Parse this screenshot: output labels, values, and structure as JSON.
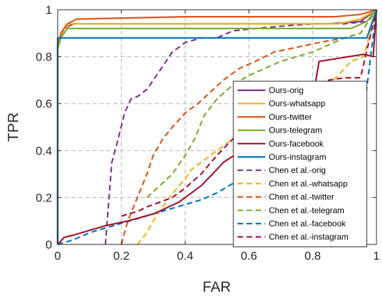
{
  "chart_data": {
    "type": "line",
    "title": "",
    "xlabel": "FAR",
    "ylabel": "TPR",
    "xlim": [
      0,
      1
    ],
    "ylim": [
      0,
      1
    ],
    "xticks": [
      0,
      0.2,
      0.4,
      0.6,
      0.8,
      1
    ],
    "yticks": [
      0,
      0.2,
      0.4,
      0.6,
      0.8,
      1
    ],
    "xtick_labels": [
      "0",
      "0.2",
      "0.4",
      "0.6",
      "0.8",
      "1"
    ],
    "ytick_labels": [
      "0",
      "0.2",
      "0.4",
      "0.6",
      "0.8",
      "1"
    ],
    "grid": true,
    "legend_position": "bottom-right",
    "series": [
      {
        "name": "Ours-orig",
        "color": "#7E2F8E",
        "dash": "solid",
        "x": [
          0,
          0,
          0.02,
          0.05,
          0.85,
          0.95,
          1
        ],
        "y": [
          0,
          0.85,
          0.92,
          0.94,
          0.94,
          0.95,
          1
        ]
      },
      {
        "name": "Ours-whatsapp",
        "color": "#EDB120",
        "dash": "solid",
        "x": [
          0,
          0,
          0.02,
          0.04,
          0.88,
          0.95,
          1
        ],
        "y": [
          0,
          0.86,
          0.92,
          0.94,
          0.94,
          0.96,
          1
        ]
      },
      {
        "name": "Ours-twitter",
        "color": "#D95319",
        "dash": "solid",
        "x": [
          0,
          0,
          0.01,
          0.03,
          0.06,
          0.4,
          0.87,
          0.95,
          1
        ],
        "y": [
          0,
          0.84,
          0.9,
          0.94,
          0.96,
          0.97,
          0.97,
          0.98,
          1
        ]
      },
      {
        "name": "Ours-telegram",
        "color": "#77AC30",
        "dash": "solid",
        "x": [
          0,
          0,
          0.01,
          0.03,
          0.92,
          0.97,
          1
        ],
        "y": [
          0,
          0.83,
          0.88,
          0.92,
          0.92,
          0.95,
          1
        ]
      },
      {
        "name": "Ours-facebook",
        "color": "#A2142F",
        "dash": "solid",
        "x": [
          0,
          0.02,
          0.05,
          0.1,
          0.15,
          0.22,
          0.3,
          0.38,
          0.45,
          0.5,
          0.52,
          0.6,
          0.7,
          0.76,
          0.8,
          0.82,
          0.96,
          0.99,
          1
        ],
        "y": [
          0,
          0.03,
          0.04,
          0.06,
          0.08,
          0.1,
          0.13,
          0.18,
          0.25,
          0.32,
          0.35,
          0.42,
          0.48,
          0.55,
          0.62,
          0.78,
          0.81,
          0.8,
          1
        ]
      },
      {
        "name": "Ours-instagram",
        "color": "#0072BD",
        "dash": "solid",
        "x": [
          0,
          0,
          0.03,
          0.97,
          1
        ],
        "y": [
          0,
          0.88,
          0.88,
          0.88,
          1
        ]
      },
      {
        "name": "Chen et al.-orig",
        "color": "#7E2F8E",
        "dash": "dashed",
        "x": [
          0.15,
          0.17,
          0.19,
          0.21,
          0.23,
          0.25,
          0.28,
          0.3,
          0.33,
          0.36,
          0.38,
          0.4,
          0.45,
          0.5,
          0.55,
          0.62,
          0.7,
          0.8,
          0.9,
          0.97,
          1
        ],
        "y": [
          0,
          0.35,
          0.45,
          0.56,
          0.62,
          0.63,
          0.66,
          0.7,
          0.76,
          0.82,
          0.84,
          0.86,
          0.88,
          0.88,
          0.91,
          0.92,
          0.93,
          0.94,
          0.94,
          0.95,
          1
        ]
      },
      {
        "name": "Chen et al.-whatsapp",
        "color": "#EDB120",
        "dash": "dashed",
        "x": [
          0.25,
          0.28,
          0.3,
          0.35,
          0.4,
          0.42,
          0.45,
          0.5,
          0.55,
          0.6,
          0.65,
          0.7,
          0.75,
          0.8,
          0.85,
          0.88,
          0.92,
          0.96,
          1
        ],
        "y": [
          0,
          0.05,
          0.1,
          0.2,
          0.28,
          0.32,
          0.35,
          0.4,
          0.45,
          0.5,
          0.52,
          0.56,
          0.6,
          0.65,
          0.68,
          0.72,
          0.78,
          0.8,
          1
        ]
      },
      {
        "name": "Chen et al.-twitter",
        "color": "#D95319",
        "dash": "dashed",
        "x": [
          0.2,
          0.22,
          0.25,
          0.28,
          0.3,
          0.33,
          0.36,
          0.4,
          0.44,
          0.48,
          0.52,
          0.57,
          0.62,
          0.68,
          0.75,
          0.82,
          0.9,
          0.95,
          1
        ],
        "y": [
          0,
          0.1,
          0.2,
          0.3,
          0.38,
          0.45,
          0.5,
          0.56,
          0.6,
          0.65,
          0.7,
          0.75,
          0.78,
          0.82,
          0.84,
          0.86,
          0.88,
          0.9,
          1
        ]
      },
      {
        "name": "Chen et al.-telegram",
        "color": "#77AC30",
        "dash": "dashed",
        "x": [
          0.28,
          0.32,
          0.36,
          0.4,
          0.43,
          0.46,
          0.5,
          0.55,
          0.6,
          0.65,
          0.7,
          0.75,
          0.8,
          0.85,
          0.9,
          0.95,
          1
        ],
        "y": [
          0.2,
          0.25,
          0.3,
          0.38,
          0.45,
          0.55,
          0.62,
          0.68,
          0.72,
          0.75,
          0.78,
          0.8,
          0.82,
          0.85,
          0.88,
          0.9,
          1
        ]
      },
      {
        "name": "Chen et al.-facebook",
        "color": "#0072BD",
        "dash": "dashed",
        "x": [
          0,
          0.05,
          0.1,
          0.15,
          0.2,
          0.25,
          0.3,
          0.35,
          0.4,
          0.45,
          0.5,
          0.55,
          0.6,
          0.65,
          0.7,
          0.72,
          0.8,
          0.9,
          0.95,
          1
        ],
        "y": [
          0,
          0.02,
          0.05,
          0.07,
          0.09,
          0.11,
          0.13,
          0.15,
          0.17,
          0.19,
          0.22,
          0.26,
          0.29,
          0.32,
          0.34,
          0.37,
          0.4,
          0.42,
          0.45,
          1
        ]
      },
      {
        "name": "Chen et al.-instagram",
        "color": "#A2142F",
        "dash": "dashed",
        "x": [
          0.2,
          0.22,
          0.25,
          0.28,
          0.32,
          0.36,
          0.4,
          0.45,
          0.5,
          0.55,
          0.6,
          0.65,
          0.7,
          0.75,
          0.8,
          0.85,
          0.9,
          0.95,
          1
        ],
        "y": [
          0.12,
          0.13,
          0.14,
          0.16,
          0.18,
          0.2,
          0.24,
          0.3,
          0.38,
          0.45,
          0.52,
          0.58,
          0.63,
          0.66,
          0.68,
          0.7,
          0.71,
          0.71,
          1
        ]
      }
    ]
  }
}
